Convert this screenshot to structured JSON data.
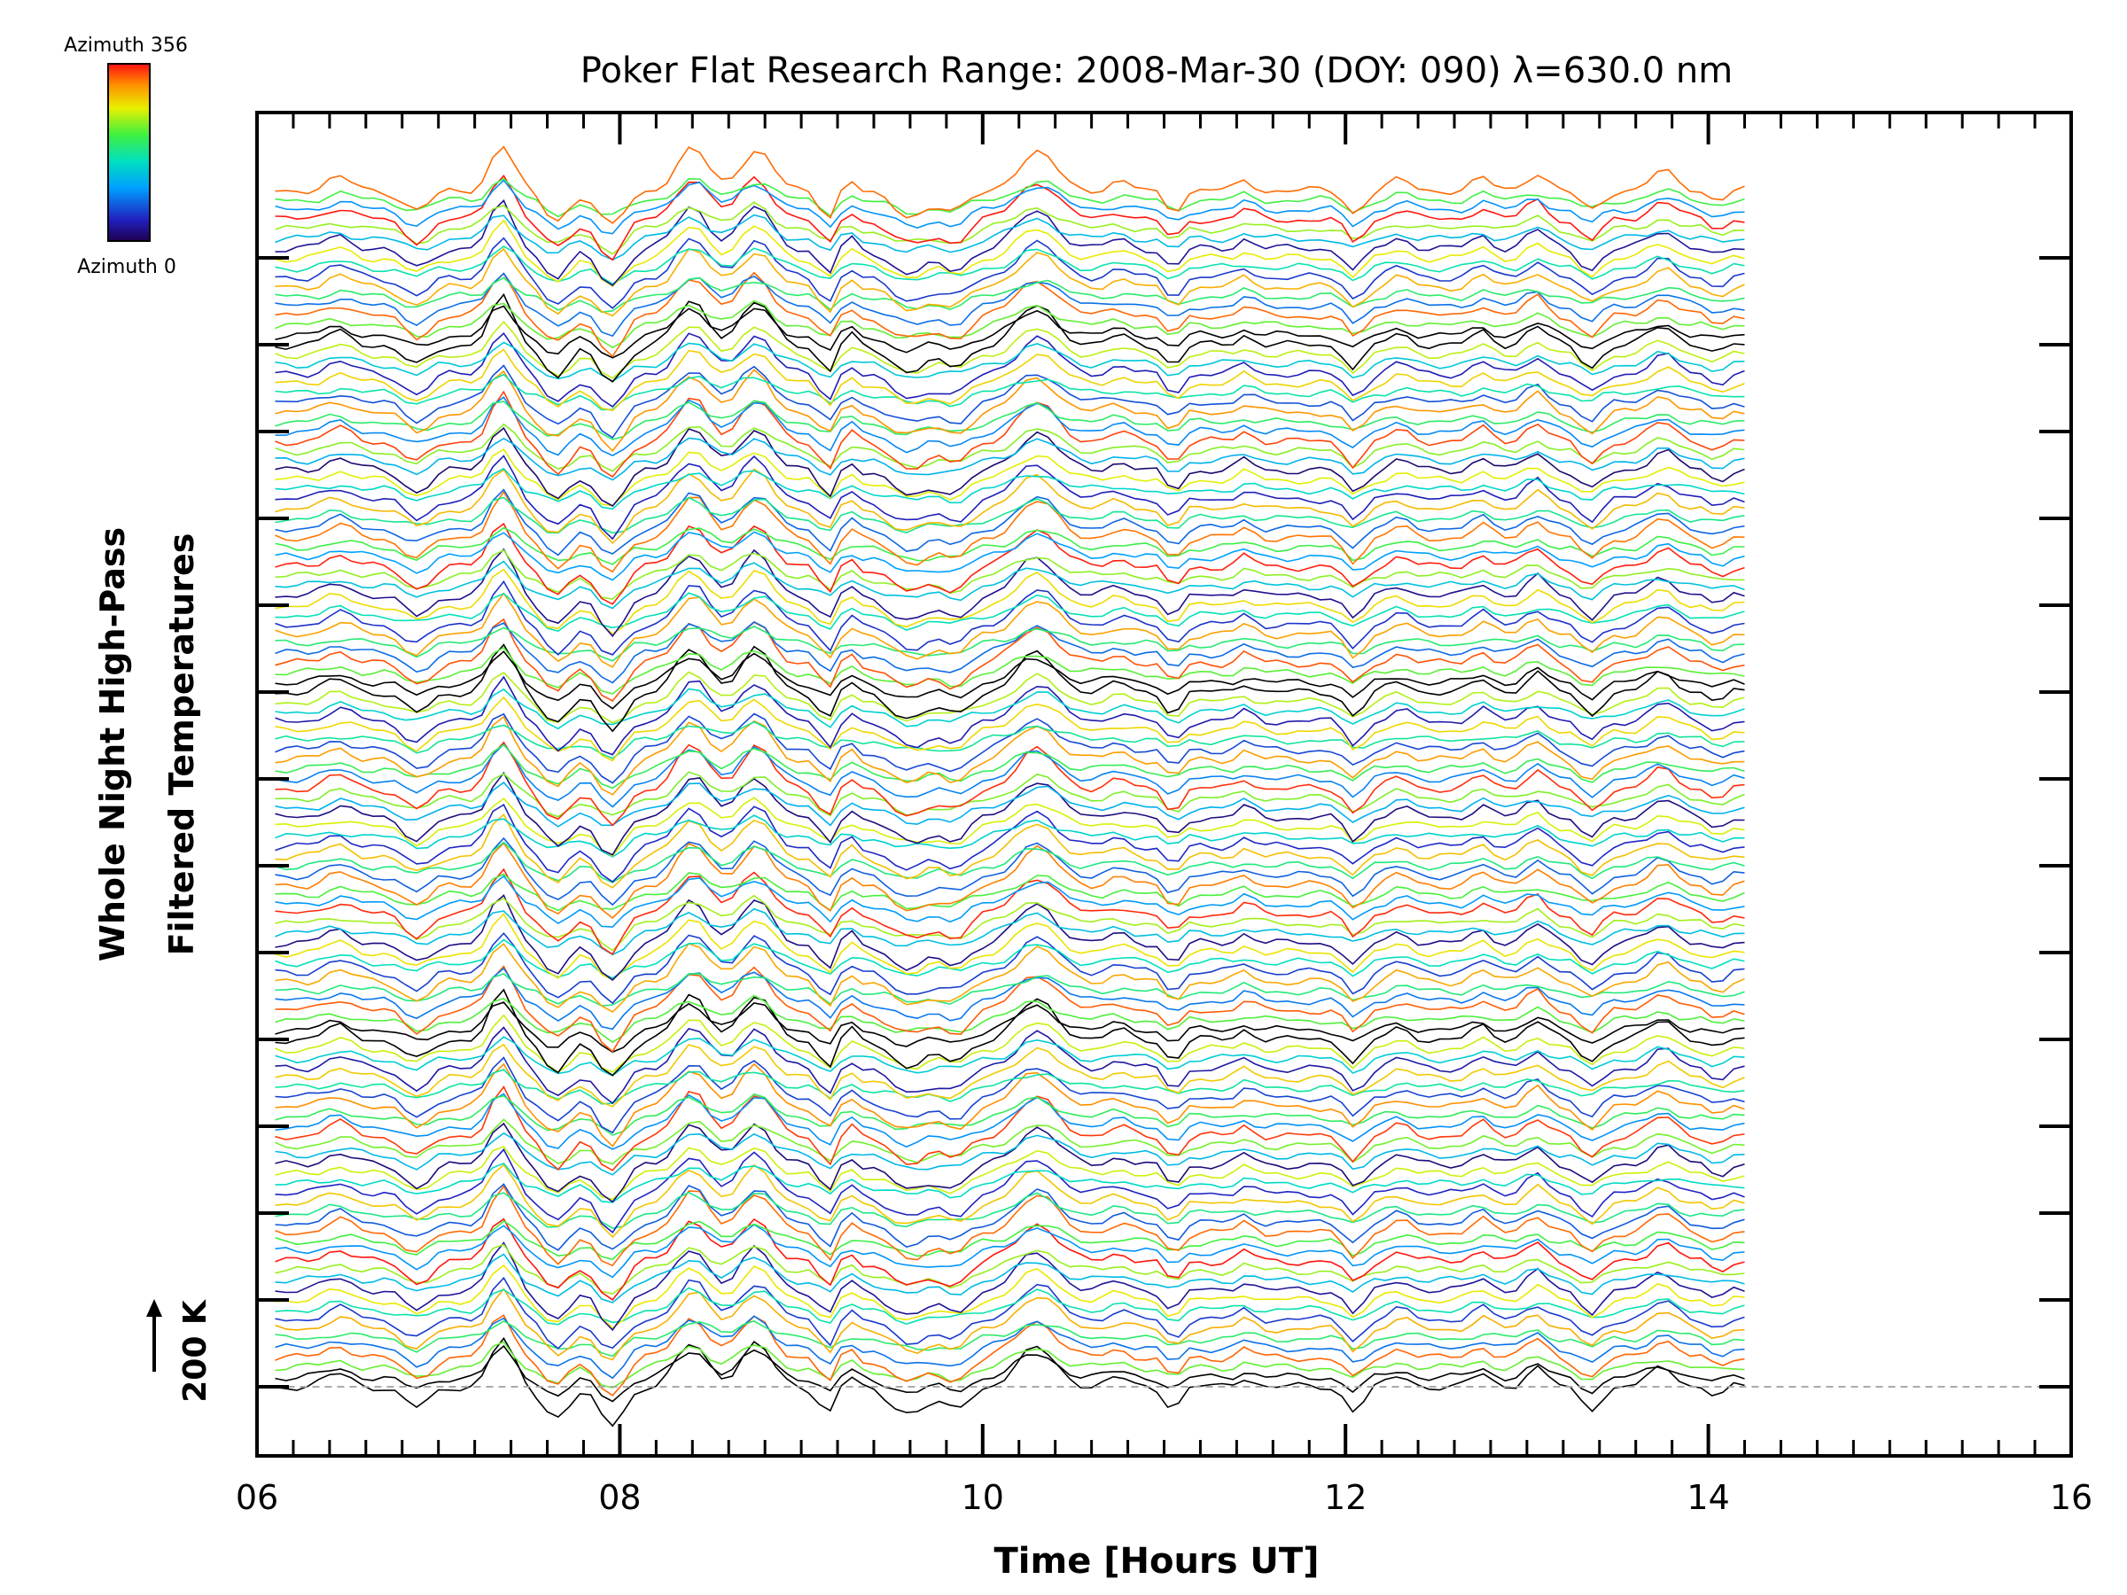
{
  "chart_data": {
    "type": "line",
    "title": "Poker Flat Research Range: 2008-Mar-30 (DOY: 090) λ=630.0 nm",
    "xlabel": "Time [Hours UT]",
    "ylabel_line1": "Whole Night High-Pass",
    "ylabel_line2": "Filtered Temperatures",
    "scale_label": "200 K",
    "xlim": [
      6,
      16
    ],
    "x_ticks": [
      "06",
      "08",
      "10",
      "12",
      "14",
      "16"
    ],
    "data_time_range": [
      6.1,
      14.2
    ],
    "series_count": 125,
    "stacked": true,
    "colorbar": {
      "top_label": "Azimuth 356",
      "bottom_label": "Azimuth 0",
      "min_azimuth": 0,
      "max_azimuth": 356,
      "colormap": "rainbow"
    },
    "baseline_style": "dashed-gray",
    "axis_color": "#000000"
  }
}
